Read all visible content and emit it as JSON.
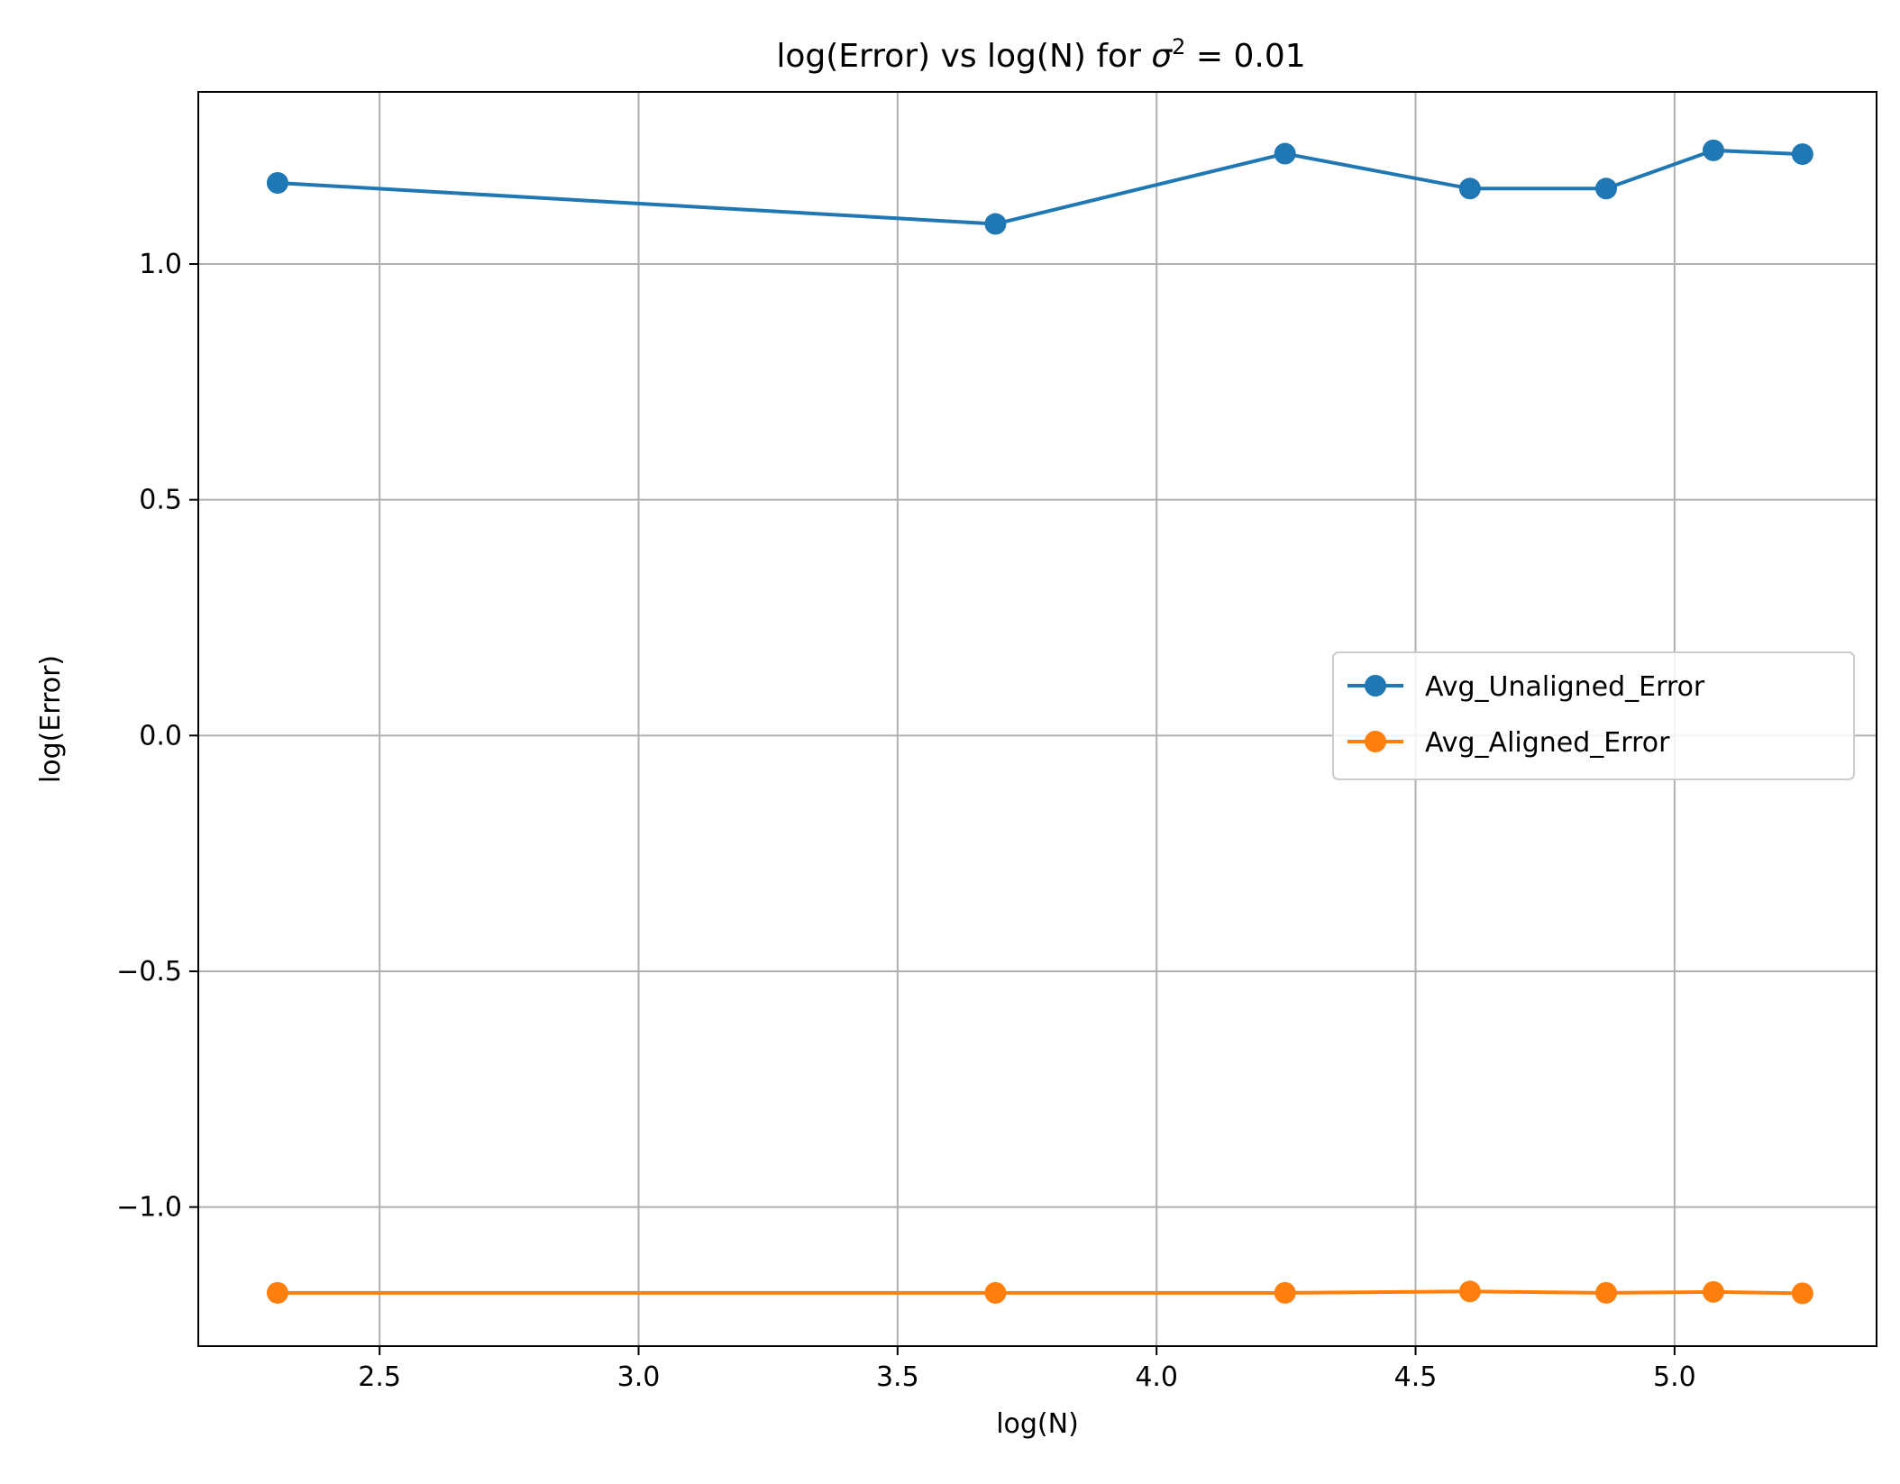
{
  "chart_data": {
    "type": "line",
    "title": "log(Error) vs log(N) for σ² = 0.01",
    "title_parts": {
      "prefix": "log(Error) vs log(N) for ",
      "symbol": "σ",
      "superscript": "2",
      "suffix": " = 0.01"
    },
    "xlabel": "log(N)",
    "ylabel": "log(Error)",
    "xlim": [
      2.15,
      5.39
    ],
    "ylim": [
      -1.295,
      1.365
    ],
    "xticks": [
      {
        "value": 2.5,
        "label": "2.5"
      },
      {
        "value": 3.0,
        "label": "3.0"
      },
      {
        "value": 3.5,
        "label": "3.5"
      },
      {
        "value": 4.0,
        "label": "4.0"
      },
      {
        "value": 4.5,
        "label": "4.5"
      },
      {
        "value": 5.0,
        "label": "5.0"
      }
    ],
    "yticks": [
      {
        "value": -1.0,
        "label": "−1.0"
      },
      {
        "value": -0.5,
        "label": "−0.5"
      },
      {
        "value": 0.0,
        "label": "0.0"
      },
      {
        "value": 0.5,
        "label": "0.5"
      },
      {
        "value": 1.0,
        "label": "1.0"
      }
    ],
    "grid": true,
    "legend_position": "center-right",
    "x": [
      2.303,
      3.689,
      4.248,
      4.605,
      4.868,
      5.075,
      5.247
    ],
    "series": [
      {
        "name": "Avg_Unaligned_Error",
        "color": "#1f77b4",
        "marker": "circle",
        "values": [
          1.172,
          1.085,
          1.234,
          1.16,
          1.16,
          1.241,
          1.233
        ]
      },
      {
        "name": "Avg_Aligned_Error",
        "color": "#ff7f0e",
        "marker": "circle",
        "values": [
          -1.182,
          -1.182,
          -1.182,
          -1.179,
          -1.182,
          -1.18,
          -1.183
        ]
      }
    ]
  }
}
